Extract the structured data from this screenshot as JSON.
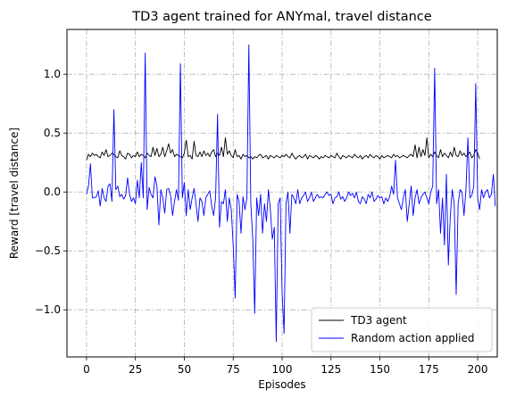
{
  "chart_data": {
    "type": "line",
    "title": "TD3 agent trained for ANYmal, travel distance",
    "xlabel": "Episodes",
    "ylabel": "Reward [travel distance]",
    "xlim": [
      -10,
      210
    ],
    "ylim": [
      -1.4,
      1.38
    ],
    "xticks": [
      0,
      25,
      50,
      75,
      100,
      125,
      150,
      175,
      200
    ],
    "xtick_labels": [
      "0",
      "25",
      "50",
      "75",
      "100",
      "125",
      "150",
      "175",
      "200"
    ],
    "yticks": [
      -1.0,
      -0.5,
      0.0,
      0.5,
      1.0
    ],
    "ytick_labels": [
      "−1.0",
      "−0.5",
      "0.0",
      "0.5",
      "1.0"
    ],
    "grid": true,
    "grid_style": "dash-dot",
    "legend_position": "lower-right",
    "series": [
      {
        "name": "TD3 agent",
        "color": "#000000",
        "values": [
          0.27,
          0.32,
          0.3,
          0.33,
          0.31,
          0.32,
          0.3,
          0.29,
          0.34,
          0.31,
          0.36,
          0.3,
          0.31,
          0.33,
          0.32,
          0.3,
          0.29,
          0.35,
          0.31,
          0.3,
          0.28,
          0.33,
          0.32,
          0.29,
          0.31,
          0.3,
          0.34,
          0.3,
          0.32,
          0.31,
          0.29,
          0.33,
          0.31,
          0.3,
          0.38,
          0.31,
          0.37,
          0.3,
          0.32,
          0.38,
          0.3,
          0.35,
          0.41,
          0.33,
          0.36,
          0.3,
          0.32,
          0.31,
          0.3,
          0.29,
          0.33,
          0.44,
          0.3,
          0.31,
          0.28,
          0.43,
          0.31,
          0.3,
          0.34,
          0.3,
          0.35,
          0.31,
          0.33,
          0.3,
          0.34,
          0.36,
          0.3,
          0.33,
          0.31,
          0.38,
          0.3,
          0.46,
          0.32,
          0.35,
          0.31,
          0.29,
          0.36,
          0.3,
          0.31,
          0.28,
          0.32,
          0.3,
          0.31,
          0.29,
          0.3,
          0.28,
          0.3,
          0.29,
          0.31,
          0.32,
          0.29,
          0.3,
          0.31,
          0.28,
          0.31,
          0.3,
          0.29,
          0.31,
          0.3,
          0.29,
          0.31,
          0.3,
          0.32,
          0.3,
          0.29,
          0.33,
          0.3,
          0.28,
          0.3,
          0.31,
          0.29,
          0.3,
          0.32,
          0.28,
          0.31,
          0.3,
          0.29,
          0.31,
          0.3,
          0.28,
          0.3,
          0.29,
          0.31,
          0.3,
          0.29,
          0.31,
          0.3,
          0.29,
          0.33,
          0.3,
          0.28,
          0.31,
          0.3,
          0.29,
          0.31,
          0.3,
          0.29,
          0.32,
          0.3,
          0.29,
          0.31,
          0.28,
          0.3,
          0.31,
          0.29,
          0.32,
          0.3,
          0.29,
          0.31,
          0.3,
          0.28,
          0.31,
          0.29,
          0.3,
          0.31,
          0.3,
          0.29,
          0.32,
          0.3,
          0.31,
          0.29,
          0.3,
          0.31,
          0.3,
          0.29,
          0.31,
          0.32,
          0.3,
          0.4,
          0.29,
          0.38,
          0.3,
          0.36,
          0.31,
          0.46,
          0.29,
          0.32,
          0.3,
          0.34,
          0.31,
          0.29,
          0.36,
          0.3,
          0.33,
          0.31,
          0.29,
          0.34,
          0.3,
          0.38,
          0.31,
          0.3,
          0.35,
          0.31,
          0.33,
          0.3,
          0.32,
          0.34,
          0.29,
          0.31,
          0.36,
          0.33,
          0.28
        ]
      },
      {
        "name": "Random action applied",
        "color": "#0000ff",
        "values": [
          -0.02,
          0.05,
          0.24,
          -0.05,
          -0.05,
          -0.04,
          0.01,
          -0.12,
          0.03,
          -0.05,
          -0.08,
          0.05,
          0.07,
          -0.08,
          0.7,
          0.02,
          0.05,
          -0.04,
          -0.02,
          -0.06,
          -0.03,
          0.12,
          -0.02,
          -0.08,
          -0.05,
          -0.1,
          0.1,
          -0.05,
          0.25,
          -0.05,
          1.18,
          -0.15,
          0.04,
          -0.02,
          -0.05,
          0.13,
          0.05,
          -0.28,
          0.02,
          -0.05,
          -0.18,
          0.02,
          0.03,
          -0.03,
          -0.2,
          -0.08,
          0.02,
          -0.07,
          1.09,
          -0.05,
          0.08,
          -0.2,
          0.02,
          -0.15,
          -0.05,
          0.03,
          -0.1,
          -0.25,
          -0.05,
          -0.08,
          -0.2,
          -0.05,
          -0.02,
          0.01,
          -0.12,
          -0.2,
          -0.05,
          0.66,
          -0.3,
          -0.08,
          -0.1,
          0.02,
          -0.25,
          -0.05,
          -0.15,
          -0.45,
          -0.9,
          -0.02,
          -0.08,
          -0.35,
          -0.04,
          -0.15,
          -0.05,
          1.25,
          -0.1,
          -0.4,
          -1.03,
          -0.05,
          -0.2,
          -0.02,
          -0.35,
          -0.1,
          -0.25,
          0.02,
          -0.15,
          -0.4,
          -0.3,
          -1.27,
          -0.1,
          -0.05,
          -0.85,
          -1.2,
          -0.1,
          0.0,
          -0.35,
          -0.02,
          -0.05,
          -0.1,
          0.02,
          -0.1,
          -0.05,
          -0.03,
          0.0,
          -0.08,
          -0.05,
          0.0,
          -0.08,
          -0.05,
          -0.02,
          -0.05,
          -0.04,
          -0.05,
          -0.02,
          0.0,
          -0.03,
          -0.02,
          -0.1,
          -0.05,
          -0.04,
          0.0,
          -0.06,
          -0.04,
          -0.08,
          -0.05,
          0.0,
          -0.03,
          -0.01,
          -0.05,
          0.0,
          -0.08,
          -0.1,
          -0.04,
          -0.06,
          -0.1,
          -0.02,
          -0.05,
          0.0,
          -0.08,
          -0.06,
          -0.03,
          -0.05,
          -0.04,
          -0.1,
          -0.05,
          -0.08,
          -0.04,
          0.05,
          -0.02,
          0.27,
          -0.05,
          -0.1,
          -0.15,
          -0.05,
          0.02,
          -0.25,
          -0.1,
          0.05,
          -0.2,
          -0.05,
          0.02,
          -0.1,
          -0.05,
          -0.02,
          0.0,
          -0.05,
          -0.1,
          0.0,
          0.05,
          1.05,
          -0.1,
          0.02,
          -0.35,
          -0.05,
          -0.45,
          0.15,
          -0.62,
          -0.2,
          0.02,
          -0.1,
          -0.87,
          -0.1,
          0.02,
          0.0,
          -0.2,
          0.02,
          0.46,
          -0.05,
          -0.03,
          0.05,
          0.92,
          -0.05,
          -0.15,
          0.02,
          -0.05,
          0.0,
          0.02,
          -0.05,
          -0.02,
          0.15,
          -0.12
        ]
      }
    ]
  }
}
